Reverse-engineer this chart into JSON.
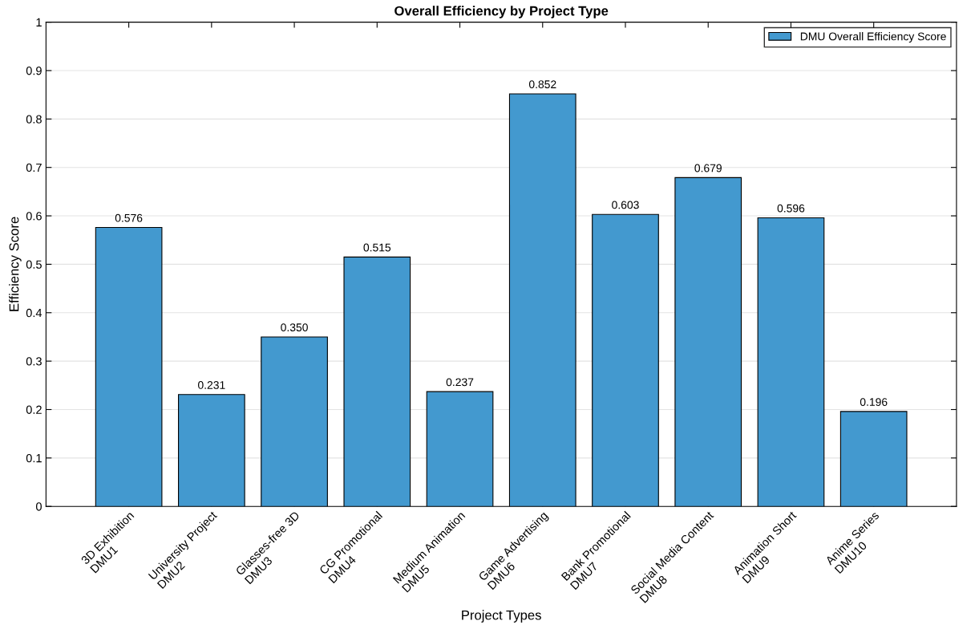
{
  "chart_data": {
    "type": "bar",
    "title": "Overall Efficiency by Project Type",
    "xlabel": "Project Types",
    "ylabel": "Efficiency Score",
    "categories": [
      "3D Exhibition\nDMU1",
      "University Project\nDMU2",
      "Glasses-free 3D\nDMU3",
      "CG Promotional\nDMU4",
      "Medium Animation\nDMU5",
      "Game Advertising\nDMU6",
      "Bank Promotional\nDMU7",
      "Social Media Content\nDMU8",
      "Animation Short\nDMU9",
      "Anime Series\nDMU10"
    ],
    "series": [
      {
        "name": "DMU Overall Efficiency Score",
        "color": "#4399cf",
        "values": [
          0.576,
          0.231,
          0.35,
          0.515,
          0.237,
          0.852,
          0.603,
          0.679,
          0.596,
          0.196
        ],
        "value_labels": [
          "0.576",
          "0.231",
          "0.350",
          "0.515",
          "0.237",
          "0.852",
          "0.603",
          "0.679",
          "0.596",
          "0.196"
        ]
      }
    ],
    "ylim": [
      0,
      1
    ],
    "yticks": [
      0,
      0.1,
      0.2,
      0.3,
      0.4,
      0.5,
      0.6,
      0.7,
      0.8,
      0.9,
      1
    ],
    "grid": "y",
    "legend": "top right"
  }
}
